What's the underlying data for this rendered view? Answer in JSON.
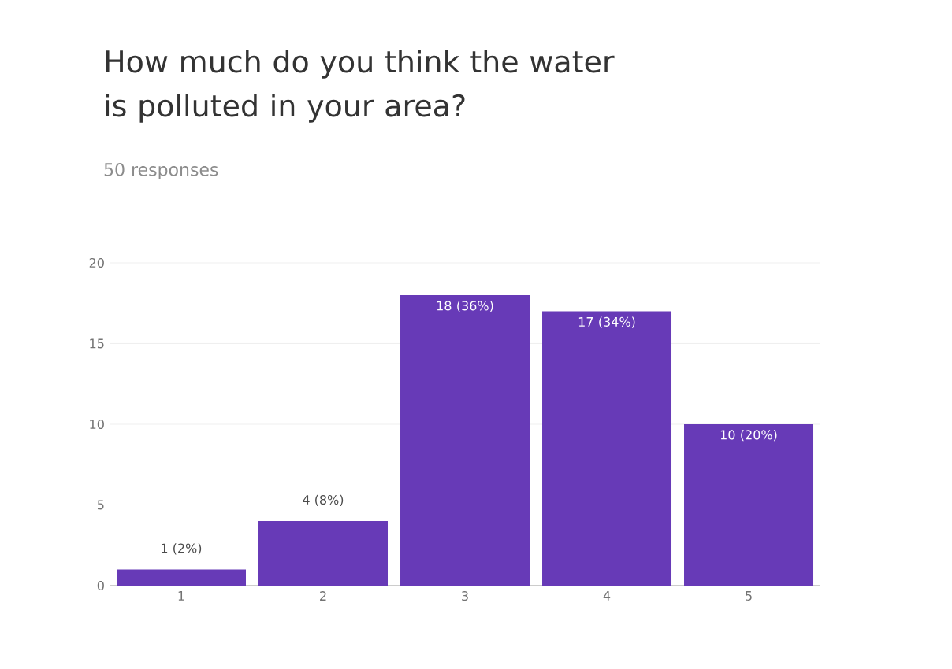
{
  "chart_data": {
    "type": "bar",
    "title": "How much do you think the water is polluted in your area?",
    "subtitle": "50 responses",
    "categories": [
      "1",
      "2",
      "3",
      "4",
      "5"
    ],
    "values": [
      1,
      4,
      18,
      17,
      10
    ],
    "value_labels": [
      "1 (2%)",
      "4 (8%)",
      "18 (36%)",
      "17 (34%)",
      "10 (20%)"
    ],
    "color": "#673ab7",
    "ylim": [
      0,
      20
    ],
    "yticks": [
      0,
      5,
      10,
      15,
      20
    ],
    "grid": "y"
  }
}
